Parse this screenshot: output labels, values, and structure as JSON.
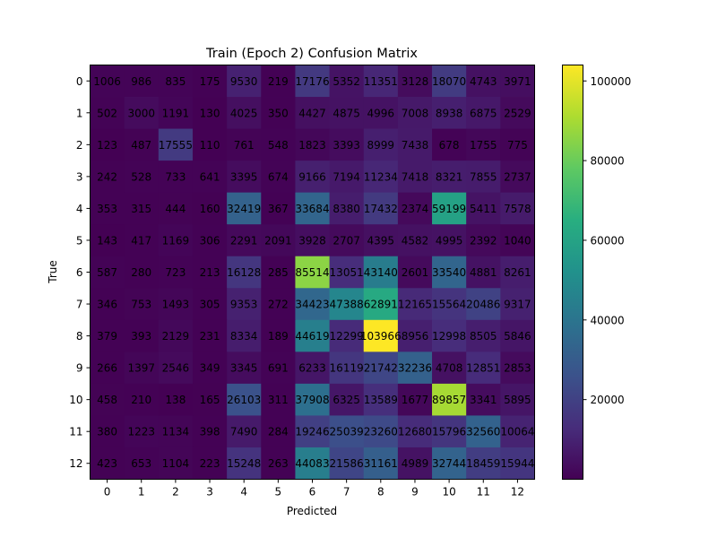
{
  "chart_data": {
    "type": "heatmap",
    "title": "Train (Epoch 2) Confusion Matrix",
    "xlabel": "Predicted",
    "ylabel": "True",
    "x_categories": [
      "0",
      "1",
      "2",
      "3",
      "4",
      "5",
      "6",
      "7",
      "8",
      "9",
      "10",
      "11",
      "12"
    ],
    "y_categories": [
      "0",
      "1",
      "2",
      "3",
      "4",
      "5",
      "6",
      "7",
      "8",
      "9",
      "10",
      "11",
      "12"
    ],
    "colormap": "viridis",
    "color_range": [
      0,
      104000
    ],
    "colorbar_ticks": [
      20000,
      40000,
      60000,
      80000,
      100000
    ],
    "colorbar_tick_labels": [
      "20000",
      "40000",
      "60000",
      "80000",
      "100000"
    ],
    "matrix": [
      [
        1006,
        986,
        835,
        175,
        9530,
        219,
        17176,
        5352,
        11351,
        3128,
        18070,
        4743,
        3971
      ],
      [
        502,
        3000,
        1191,
        130,
        4025,
        350,
        4427,
        4875,
        4996,
        7008,
        8938,
        6875,
        2529
      ],
      [
        123,
        487,
        17555,
        110,
        761,
        548,
        1823,
        3393,
        8999,
        7438,
        678,
        1755,
        775
      ],
      [
        242,
        528,
        733,
        641,
        3395,
        674,
        9166,
        7194,
        11234,
        7418,
        8321,
        7855,
        2737
      ],
      [
        353,
        315,
        444,
        160,
        32419,
        367,
        33684,
        8380,
        17432,
        2374,
        59199,
        5411,
        7578
      ],
      [
        143,
        417,
        1169,
        306,
        2291,
        2091,
        3928,
        2707,
        4395,
        4582,
        4995,
        2392,
        1040
      ],
      [
        587,
        280,
        723,
        213,
        16128,
        285,
        85514,
        13051,
        43140,
        2601,
        33540,
        4881,
        8261
      ],
      [
        346,
        753,
        1493,
        305,
        9353,
        272,
        34423,
        47388,
        62891,
        12165,
        15564,
        20486,
        9317
      ],
      [
        379,
        393,
        2129,
        231,
        8334,
        189,
        44619,
        12299,
        103966,
        8956,
        12998,
        8505,
        5846
      ],
      [
        266,
        1397,
        2546,
        349,
        3345,
        691,
        6233,
        16119,
        21742,
        32236,
        4708,
        12851,
        2853
      ],
      [
        458,
        210,
        138,
        165,
        26103,
        311,
        37908,
        6325,
        13589,
        1677,
        89857,
        3341,
        5895
      ],
      [
        380,
        1223,
        1134,
        398,
        7490,
        284,
        19246,
        25039,
        23260,
        12680,
        15796,
        32560,
        10064
      ],
      [
        423,
        653,
        1104,
        223,
        15248,
        263,
        44083,
        21586,
        31161,
        4989,
        32744,
        18459,
        15944
      ]
    ]
  }
}
